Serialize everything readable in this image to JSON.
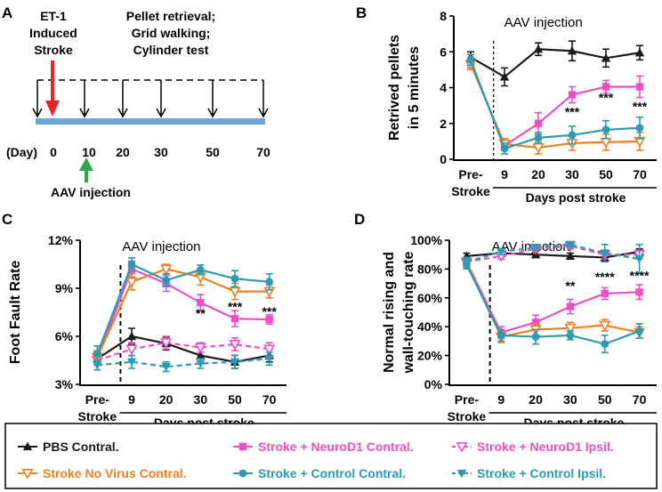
{
  "panel_labels": [
    "A",
    "B",
    "C",
    "D"
  ],
  "timeline": {
    "et1_label": [
      "ET-1",
      "Induced",
      "Stroke"
    ],
    "tests_label": [
      "Pellet retrieval;",
      "Grid walking;",
      "Cylinder test"
    ],
    "day_prefix": "(Day)",
    "days": [
      "0",
      "10",
      "20",
      "30",
      "50",
      "70"
    ],
    "aav_label": "AAV injection",
    "colors": {
      "bar": "#6ea6d6",
      "red": "#e8262a",
      "green": "#2ba84a"
    }
  },
  "legend": {
    "items": [
      {
        "label": "PBS Contral.",
        "color": "#1a1a1a",
        "marker": "tri-up",
        "dash": false
      },
      {
        "label": "Stroke + NeuroD1 Contral.",
        "color": "#ee4fc8",
        "marker": "square",
        "dash": false
      },
      {
        "label": "Stroke + NeuroD1 Ipsil.",
        "color": "#ee4fc8",
        "marker": "tri-down-open",
        "dash": true
      },
      {
        "label": "Stroke No Virus Contral.",
        "color": "#f07f22",
        "marker": "tri-down-open",
        "dash": false
      },
      {
        "label": "Stroke + Control Contral.",
        "color": "#2a9bb0",
        "marker": "circle",
        "dash": false
      },
      {
        "label": "Stroke + Control Ipsil.",
        "color": "#2a9bb0",
        "marker": "tri-down",
        "dash": true
      }
    ]
  },
  "chart_data": [
    {
      "panel": "B",
      "type": "line",
      "ylabel": [
        "Retrived pellets",
        "in 5 minutes"
      ],
      "xlabel": "Days post stroke",
      "categories": [
        "Pre-\nStroke",
        "9",
        "20",
        "30",
        "50",
        "70"
      ],
      "ylim": [
        0,
        8
      ],
      "yticks": [
        "0",
        "2",
        "4",
        "6",
        "8"
      ],
      "ytick_values": [
        0,
        2,
        4,
        6,
        8
      ],
      "annotation": "AAV injection",
      "series": [
        {
          "name": "PBS Contral.",
          "color": "#1a1a1a",
          "marker": "tri-up",
          "dash": false,
          "values": [
            5.7,
            4.6,
            6.15,
            6.05,
            5.65,
            5.95
          ],
          "err": [
            0.3,
            0.5,
            0.35,
            0.55,
            0.5,
            0.4
          ]
        },
        {
          "name": "Stroke + NeuroD1 Contral.",
          "color": "#ee4fc8",
          "marker": "square",
          "dash": false,
          "values": [
            5.4,
            0.75,
            2.0,
            3.6,
            4.05,
            4.05
          ],
          "err": [
            0.3,
            0.2,
            0.6,
            0.45,
            0.35,
            0.6
          ]
        },
        {
          "name": "Stroke No Virus Contral.",
          "color": "#f07f22",
          "marker": "tri-down-open",
          "dash": false,
          "values": [
            5.3,
            0.85,
            0.65,
            0.9,
            0.95,
            1.0
          ],
          "err": [
            0.3,
            0.3,
            0.35,
            0.4,
            0.45,
            0.5
          ]
        },
        {
          "name": "Stroke + Control Contral.",
          "color": "#2a9bb0",
          "marker": "circle",
          "dash": false,
          "values": [
            5.55,
            0.6,
            1.2,
            1.35,
            1.65,
            1.75
          ],
          "err": [
            0.3,
            0.3,
            0.3,
            0.5,
            0.5,
            0.6
          ]
        }
      ],
      "stars": [
        {
          "category": 3,
          "text": "***",
          "y": 2.6
        },
        {
          "category": 4,
          "text": "***",
          "y": 3.4
        },
        {
          "category": 5,
          "text": "***",
          "y": 2.9
        }
      ]
    },
    {
      "panel": "C",
      "type": "line",
      "ylabel": [
        "Foot Fault Rate"
      ],
      "xlabel": "Days post stroke",
      "categories": [
        "Pre-\nStroke",
        "9",
        "20",
        "30",
        "50",
        "70"
      ],
      "ylim": [
        3,
        12
      ],
      "yticks": [
        "3%",
        "6%",
        "9%",
        "12%"
      ],
      "ytick_values": [
        3,
        6,
        9,
        12
      ],
      "annotation": "AAV injection",
      "series": [
        {
          "name": "PBS Contral.",
          "color": "#1a1a1a",
          "marker": "tri-up",
          "dash": false,
          "values": [
            4.6,
            6.0,
            5.55,
            4.8,
            4.4,
            4.8
          ],
          "err": [
            0.4,
            0.5,
            0.4,
            0.5,
            0.4,
            0.4
          ]
        },
        {
          "name": "Stroke + NeuroD1 Contral.",
          "color": "#ee4fc8",
          "marker": "square",
          "dash": false,
          "values": [
            4.6,
            10.2,
            9.3,
            8.1,
            7.1,
            7.05
          ],
          "err": [
            0.4,
            0.5,
            0.5,
            0.5,
            0.5,
            0.3
          ]
        },
        {
          "name": "Stroke + NeuroD1 Ipsil.",
          "color": "#ee4fc8",
          "marker": "tri-down-open",
          "dash": true,
          "values": [
            4.5,
            5.2,
            5.6,
            5.3,
            5.5,
            5.2
          ],
          "err": [
            0.3,
            0.4,
            0.4,
            0.3,
            0.4,
            0.4
          ]
        },
        {
          "name": "Stroke No Virus Contral.",
          "color": "#f07f22",
          "marker": "tri-down-open",
          "dash": false,
          "values": [
            4.7,
            9.4,
            10.2,
            9.7,
            8.8,
            8.8
          ],
          "err": [
            0.4,
            0.5,
            0.3,
            0.5,
            0.5,
            0.4
          ]
        },
        {
          "name": "Stroke + Control Contral.",
          "color": "#2a9bb0",
          "marker": "circle",
          "dash": false,
          "values": [
            4.9,
            10.5,
            9.5,
            10.15,
            9.6,
            9.4
          ],
          "err": [
            0.5,
            0.4,
            0.4,
            0.3,
            0.5,
            0.5
          ]
        },
        {
          "name": "Stroke + Control Ipsil.",
          "color": "#2a9bb0",
          "marker": "tri-down",
          "dash": true,
          "values": [
            4.2,
            4.4,
            4.1,
            4.3,
            4.4,
            4.6
          ],
          "err": [
            0.3,
            0.4,
            0.3,
            0.3,
            0.4,
            0.4
          ]
        }
      ],
      "stars": [
        {
          "category": 3,
          "text": "**",
          "y": 7.4
        },
        {
          "category": 4,
          "text": "***",
          "y": 7.8
        },
        {
          "category": 5,
          "text": "***",
          "y": 7.5
        }
      ]
    },
    {
      "panel": "D",
      "type": "line",
      "ylabel": [
        "Normal rising and",
        "wall-touching rate"
      ],
      "xlabel": "Days post stroke",
      "categories": [
        "Pre-\nStroke",
        "9",
        "20",
        "30",
        "50",
        "70"
      ],
      "ylim": [
        0,
        100
      ],
      "yticks": [
        "0%",
        "20%",
        "40%",
        "60%",
        "80%",
        "100%"
      ],
      "ytick_values": [
        0,
        20,
        40,
        60,
        80,
        100
      ],
      "annotation": "AAV injection",
      "series": [
        {
          "name": "PBS Contral.",
          "color": "#1a1a1a",
          "marker": "tri-up",
          "dash": false,
          "values": [
            89,
            91,
            90,
            89,
            88,
            92
          ],
          "err": [
            2,
            2,
            2,
            2,
            2,
            2
          ]
        },
        {
          "name": "Stroke + NeuroD1 Contral.",
          "color": "#ee4fc8",
          "marker": "square",
          "dash": false,
          "values": [
            85,
            36,
            43,
            54,
            63,
            64
          ],
          "err": [
            3,
            4,
            5,
            5,
            4,
            5
          ]
        },
        {
          "name": "Stroke + NeuroD1 Ipsil.",
          "color": "#ee4fc8",
          "marker": "tri-down-open",
          "dash": true,
          "values": [
            85,
            89,
            94,
            96,
            90,
            90
          ],
          "err": [
            3,
            2,
            2,
            2,
            3,
            3
          ]
        },
        {
          "name": "Stroke No Virus Contral.",
          "color": "#f07f22",
          "marker": "tri-down-open",
          "dash": false,
          "values": [
            84,
            33,
            38,
            39,
            41,
            36
          ],
          "err": [
            3,
            4,
            4,
            4,
            4,
            4
          ]
        },
        {
          "name": "Stroke + Control Contral.",
          "color": "#2a9bb0",
          "marker": "circle",
          "dash": false,
          "values": [
            83,
            34,
            33,
            34,
            28,
            37
          ],
          "err": [
            3,
            4,
            5,
            3,
            6,
            5
          ]
        },
        {
          "name": "Stroke + Control Ipsil.",
          "color": "#2a9bb0",
          "marker": "tri-down",
          "dash": true,
          "values": [
            85,
            92,
            95,
            97,
            91,
            87
          ],
          "err": [
            3,
            2,
            2,
            2,
            6,
            10
          ]
        }
      ],
      "stars": [
        {
          "category": 3,
          "text": "**",
          "y": 68
        },
        {
          "category": 4,
          "text": "****",
          "y": 74
        },
        {
          "category": 5,
          "text": "****",
          "y": 75
        }
      ]
    }
  ]
}
